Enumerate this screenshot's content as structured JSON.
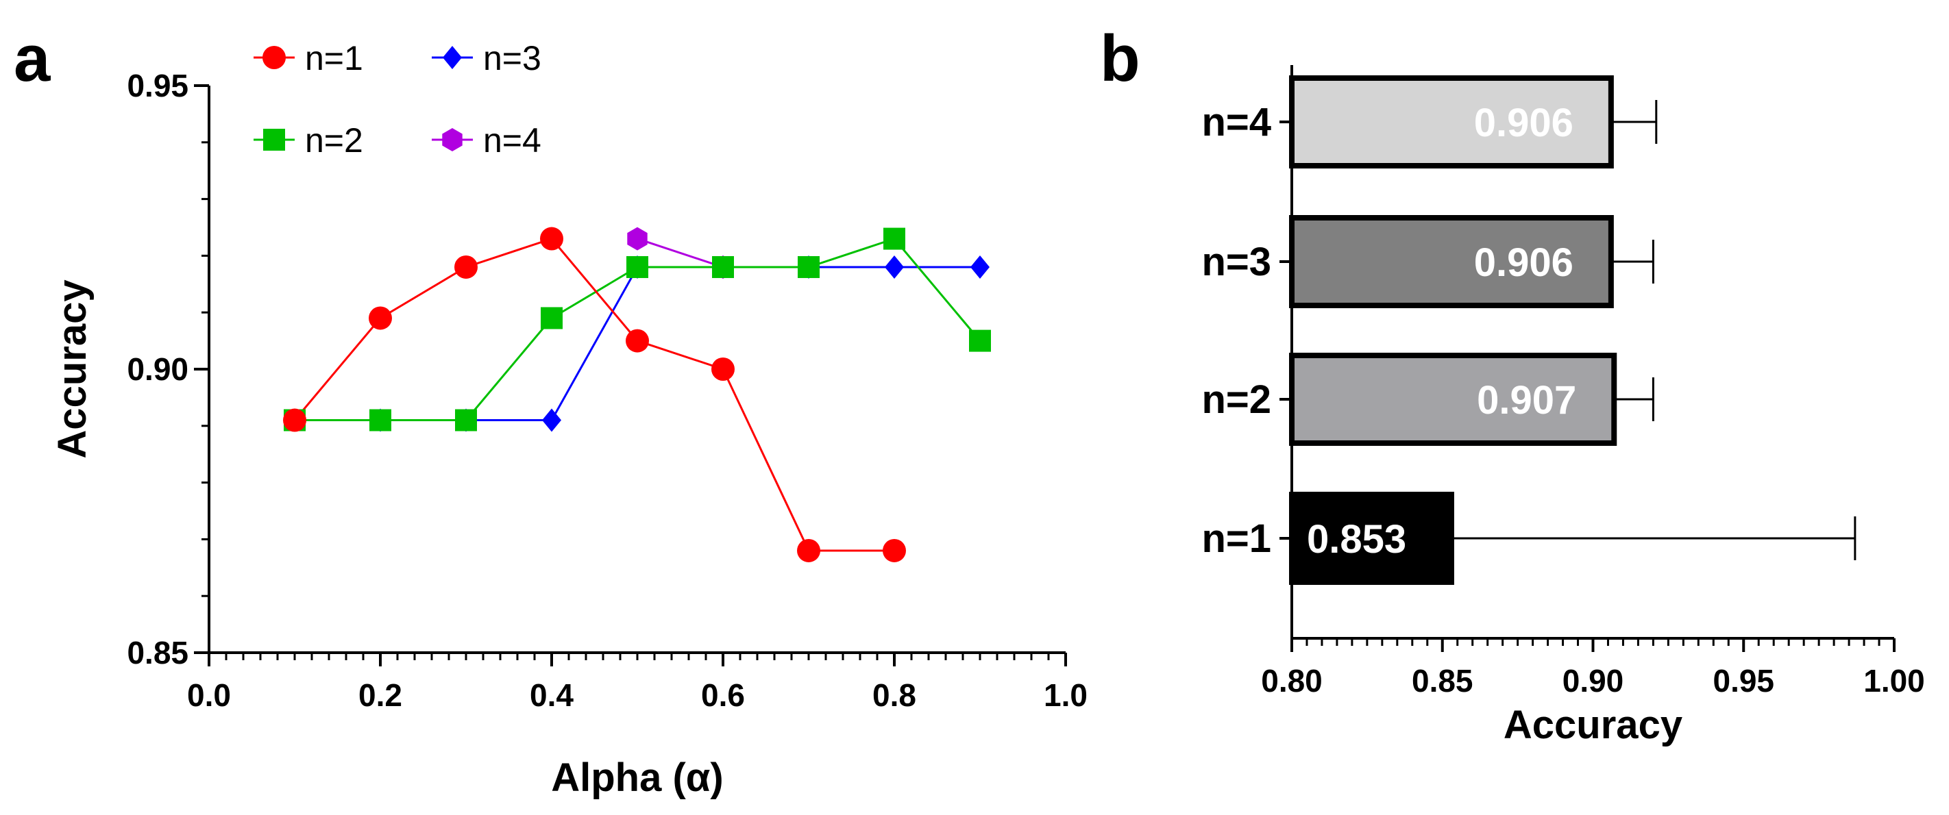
{
  "chart_data": [
    {
      "type": "line",
      "panel": "a",
      "xlabel": "Alpha (α)",
      "ylabel": "Accuracy",
      "xlim": [
        0.0,
        1.0
      ],
      "ylim": [
        0.85,
        0.95
      ],
      "xticks": [
        "0.0",
        "0.2",
        "0.4",
        "0.6",
        "0.8",
        "1.0"
      ],
      "yticks": [
        "0.85",
        "0.90",
        "0.95"
      ],
      "legend_position": "top-left",
      "series": [
        {
          "name": "n=1",
          "color": "#ff0000",
          "marker": "circle",
          "x": [
            0.1,
            0.2,
            0.3,
            0.4,
            0.5,
            0.6,
            0.7,
            0.8
          ],
          "y": [
            0.891,
            0.909,
            0.918,
            0.923,
            0.905,
            0.9,
            0.868,
            0.868
          ]
        },
        {
          "name": "n=2",
          "color": "#00c000",
          "marker": "square",
          "x": [
            0.1,
            0.2,
            0.3,
            0.4,
            0.5,
            0.6,
            0.7,
            0.8,
            0.9
          ],
          "y": [
            0.891,
            0.891,
            0.891,
            0.909,
            0.918,
            0.918,
            0.918,
            0.923,
            0.905
          ]
        },
        {
          "name": "n=3",
          "color": "#0000ff",
          "marker": "diamond",
          "x": [
            0.1,
            0.2,
            0.3,
            0.4,
            0.5,
            0.6,
            0.7,
            0.8,
            0.9
          ],
          "y": [
            0.891,
            0.891,
            0.891,
            0.891,
            0.918,
            0.918,
            0.918,
            0.918,
            0.918
          ]
        },
        {
          "name": "n=4",
          "color": "#b000e0",
          "marker": "hexagon",
          "x": [
            0.5,
            0.6
          ],
          "y": [
            0.923,
            0.918
          ]
        }
      ]
    },
    {
      "type": "bar",
      "orientation": "horizontal",
      "panel": "b",
      "xlabel": "Accuracy",
      "xlim": [
        0.8,
        1.0
      ],
      "xticks": [
        "0.80",
        "0.85",
        "0.90",
        "0.95",
        "1.00"
      ],
      "categories": [
        "n=4",
        "n=3",
        "n=2",
        "n=1"
      ],
      "values": [
        0.906,
        0.906,
        0.907,
        0.853
      ],
      "labels": [
        "0.906",
        "0.906",
        "0.907",
        "0.853"
      ],
      "error_plus": [
        0.015,
        0.014,
        0.013,
        0.134
      ],
      "colors": [
        "#d4d4d4",
        "#808080",
        "#a3a3a6",
        "#000000"
      ]
    }
  ]
}
